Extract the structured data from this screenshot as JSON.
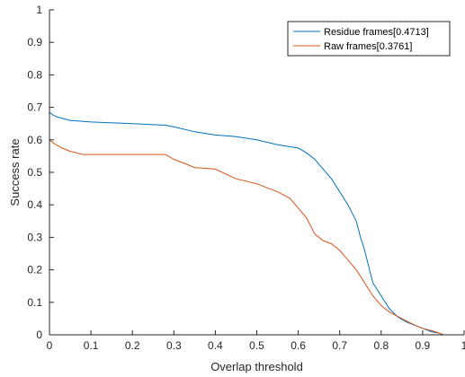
{
  "chart_data": {
    "type": "line",
    "title": "",
    "xlabel": "Overlap threshold",
    "ylabel": "Success rate",
    "xlim": [
      0,
      1
    ],
    "ylim": [
      0,
      1
    ],
    "xticks": [
      0,
      0.1,
      0.2,
      0.3,
      0.4,
      0.5,
      0.6,
      0.7,
      0.8,
      0.9,
      1
    ],
    "xtick_labels": [
      "0",
      "0.1",
      "0.2",
      "0.3",
      "0.4",
      "0.5",
      "0.6",
      "0.7",
      "0.8",
      "0.9",
      "1"
    ],
    "yticks": [
      0,
      0.1,
      0.2,
      0.3,
      0.4,
      0.5,
      0.6,
      0.7,
      0.8,
      0.9,
      1
    ],
    "ytick_labels": [
      "0",
      "0.1",
      "0.2",
      "0.3",
      "0.4",
      "0.5",
      "0.6",
      "0.7",
      "0.8",
      "0.9",
      "1"
    ],
    "grid": false,
    "legend_position": "top-right",
    "series": [
      {
        "name": "Residue frames[0.4713]",
        "color": "#0072BD",
        "x": [
          0,
          0,
          0.01,
          0.02,
          0.05,
          0.1,
          0.2,
          0.28,
          0.3,
          0.35,
          0.4,
          0.45,
          0.5,
          0.55,
          0.6,
          0.62,
          0.64,
          0.66,
          0.68,
          0.7,
          0.72,
          0.74,
          0.75,
          0.76,
          0.77,
          0.78,
          0.8,
          0.82,
          0.84,
          0.86,
          0.88,
          0.9,
          0.92,
          0.94,
          0.95,
          1
        ],
        "y": [
          1,
          0.685,
          0.675,
          0.67,
          0.66,
          0.655,
          0.65,
          0.645,
          0.64,
          0.625,
          0.615,
          0.61,
          0.6,
          0.585,
          0.575,
          0.56,
          0.54,
          0.51,
          0.48,
          0.44,
          0.4,
          0.35,
          0.3,
          0.26,
          0.21,
          0.16,
          0.12,
          0.08,
          0.055,
          0.04,
          0.03,
          0.02,
          0.01,
          0.005,
          0,
          0
        ]
      },
      {
        "name": "Raw frames[0.3761]",
        "color": "#D95319",
        "x": [
          0,
          0,
          0.01,
          0.03,
          0.05,
          0.08,
          0.1,
          0.2,
          0.28,
          0.3,
          0.33,
          0.35,
          0.4,
          0.45,
          0.5,
          0.55,
          0.58,
          0.6,
          0.62,
          0.64,
          0.66,
          0.68,
          0.7,
          0.72,
          0.74,
          0.76,
          0.78,
          0.8,
          0.82,
          0.85,
          0.88,
          0.9,
          0.93,
          0.95,
          1
        ],
        "y": [
          1,
          0.6,
          0.59,
          0.575,
          0.565,
          0.555,
          0.555,
          0.555,
          0.555,
          0.54,
          0.525,
          0.515,
          0.51,
          0.48,
          0.465,
          0.44,
          0.42,
          0.39,
          0.36,
          0.31,
          0.29,
          0.28,
          0.26,
          0.23,
          0.2,
          0.16,
          0.12,
          0.09,
          0.07,
          0.05,
          0.03,
          0.02,
          0.01,
          0,
          0
        ]
      }
    ]
  }
}
